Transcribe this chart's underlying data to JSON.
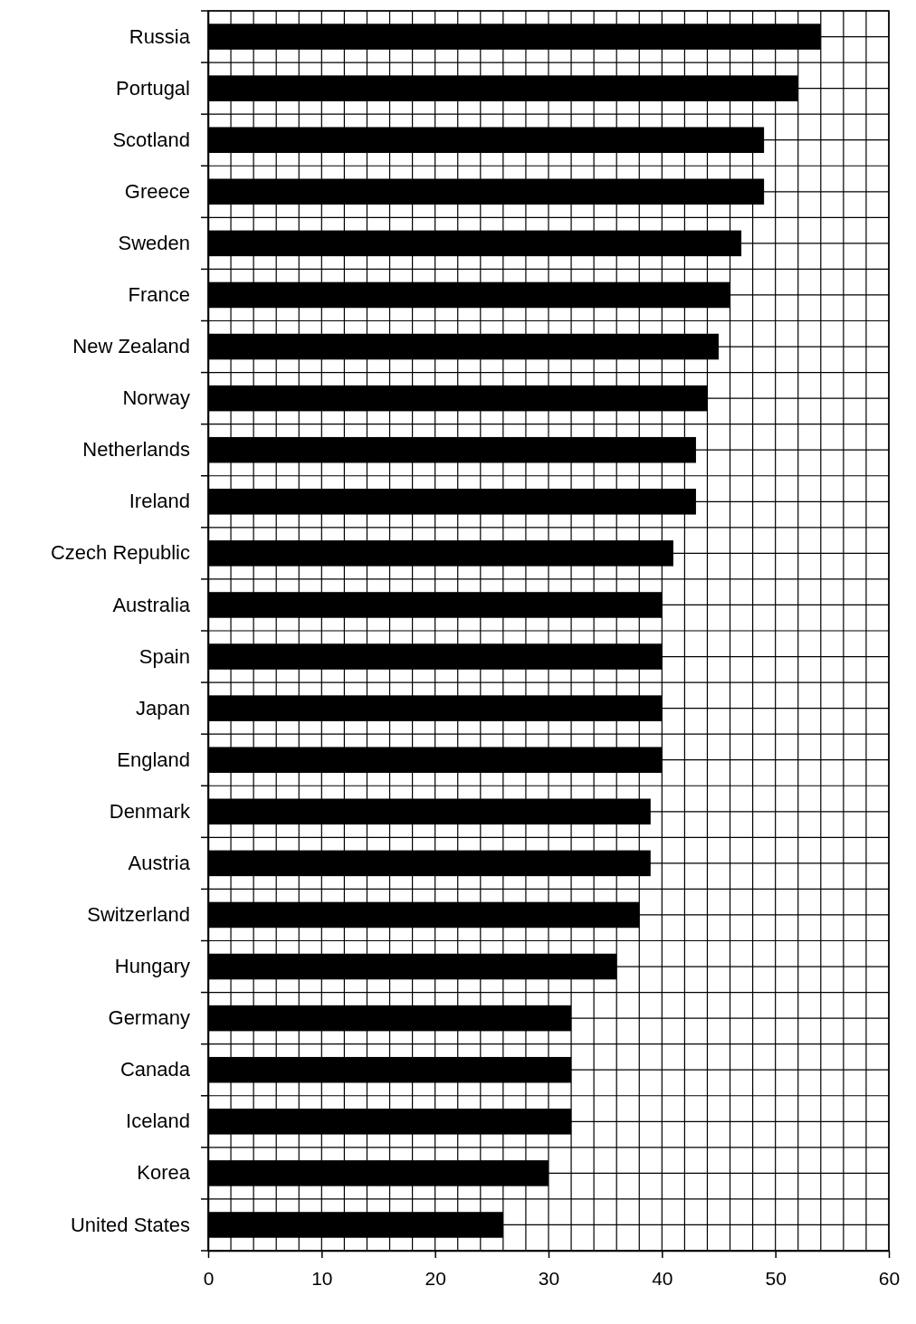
{
  "chart_data": {
    "type": "bar",
    "orientation": "horizontal",
    "categories": [
      "Russia",
      "Portugal",
      "Scotland",
      "Greece",
      "Sweden",
      "France",
      "New Zealand",
      "Norway",
      "Netherlands",
      "Ireland",
      "Czech Republic",
      "Australia",
      "Spain",
      "Japan",
      "England",
      "Denmark",
      "Austria",
      "Switzerland",
      "Hungary",
      "Germany",
      "Canada",
      "Iceland",
      "Korea",
      "United States"
    ],
    "values": [
      54,
      52,
      49,
      49,
      47,
      46,
      45,
      44,
      43,
      43,
      41,
      40,
      40,
      40,
      40,
      39,
      39,
      38,
      36,
      32,
      32,
      32,
      30,
      26
    ],
    "color": "#000000",
    "xlim": [
      0,
      60
    ],
    "xticks": [
      0,
      {
        "value": 2,
        "label": null
      },
      {
        "value": 4,
        "label": null
      },
      {
        "value": 6,
        "label": null
      },
      {
        "value": 8,
        "label": null
      },
      10,
      {
        "value": 12,
        "label": null
      },
      {
        "value": 14,
        "label": null
      },
      {
        "value": 16,
        "label": null
      },
      {
        "value": 18,
        "label": null
      },
      20,
      {
        "value": 22,
        "label": null
      },
      {
        "value": 24,
        "label": null
      },
      {
        "value": 26,
        "label": null
      },
      {
        "value": 28,
        "label": null
      },
      30,
      {
        "value": 32,
        "label": null
      },
      {
        "value": 34,
        "label": null
      },
      {
        "value": 36,
        "label": null
      },
      {
        "value": 38,
        "label": null
      },
      40,
      {
        "value": 42,
        "label": null
      },
      {
        "value": 44,
        "label": null
      },
      {
        "value": 46,
        "label": null
      },
      {
        "value": 48,
        "label": null
      },
      50,
      {
        "value": 52,
        "label": null
      },
      {
        "value": 54,
        "label": null
      },
      {
        "value": 56,
        "label": null
      },
      {
        "value": 58,
        "label": null
      },
      60
    ],
    "grid": true
  }
}
